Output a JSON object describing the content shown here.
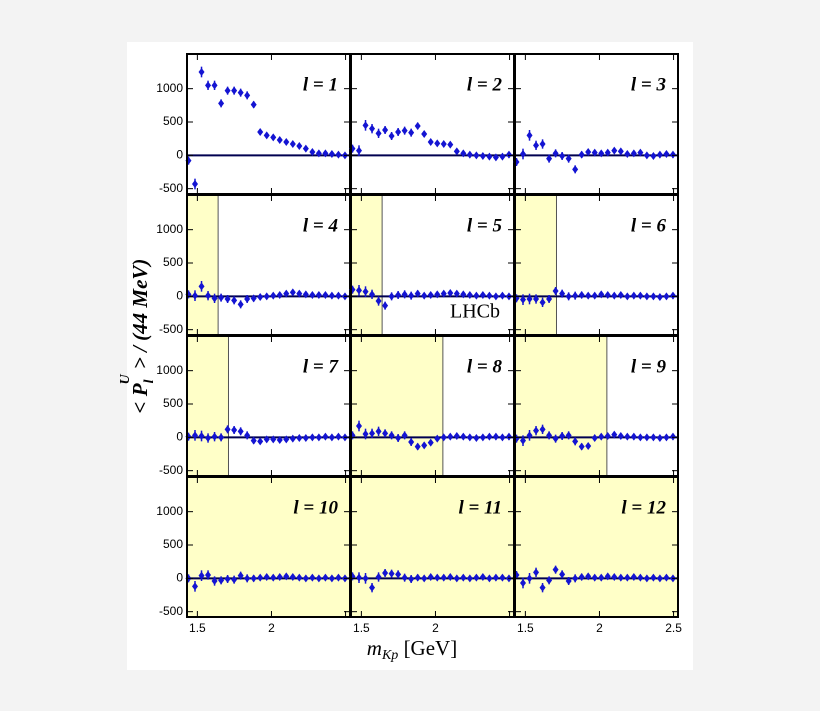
{
  "chart_data": {
    "type": "scatter",
    "x_label": {
      "main": "m",
      "sub": "Kp",
      "rest": " [GeV]"
    },
    "y_label": {
      "main": "< P",
      "sub": "l",
      "sup": "U",
      "rest": " > / (44 MeV)"
    },
    "annotation": "LHCb",
    "color": "#1414d2",
    "zero_line_color": "#000050",
    "shade_color": "#ffffc8",
    "xlim": [
      1.43,
      2.53
    ],
    "xticks": [
      1.5,
      2,
      2.5
    ],
    "ylim": [
      -580,
      1520
    ],
    "yticks": [
      -500,
      0,
      500,
      1000
    ],
    "x": [
      1.44,
      1.484,
      1.528,
      1.572,
      1.616,
      1.66,
      1.704,
      1.748,
      1.792,
      1.836,
      1.88,
      1.924,
      1.968,
      2.012,
      2.056,
      2.1,
      2.144,
      2.188,
      2.232,
      2.276,
      2.32,
      2.364,
      2.408,
      2.452,
      2.496
    ],
    "errors": [
      60,
      80,
      80,
      70,
      70,
      60,
      60,
      60,
      60,
      60,
      50,
      40,
      40,
      40,
      40,
      30,
      30,
      30,
      30,
      30,
      30,
      30,
      30,
      30,
      30
    ],
    "panels": [
      {
        "label": "l = 1",
        "shade_to": null,
        "values": [
          -80,
          -430,
          1250,
          1050,
          1050,
          780,
          970,
          970,
          940,
          900,
          760,
          350,
          300,
          270,
          230,
          200,
          170,
          140,
          100,
          50,
          30,
          30,
          20,
          10,
          0
        ]
      },
      {
        "label": "l = 2",
        "shade_to": null,
        "values": [
          100,
          70,
          450,
          400,
          330,
          380,
          290,
          350,
          370,
          340,
          440,
          320,
          200,
          180,
          170,
          160,
          60,
          30,
          10,
          0,
          -10,
          -20,
          -30,
          -20,
          10
        ]
      },
      {
        "label": "l = 3",
        "shade_to": null,
        "values": [
          -100,
          20,
          300,
          150,
          170,
          -50,
          30,
          -10,
          -50,
          -210,
          10,
          50,
          40,
          30,
          40,
          70,
          60,
          20,
          30,
          40,
          0,
          -10,
          10,
          20,
          10
        ]
      },
      {
        "label": "l = 4",
        "shade_to": 1.64,
        "values": [
          30,
          10,
          150,
          10,
          -30,
          -20,
          -40,
          -60,
          -120,
          -40,
          -30,
          -10,
          0,
          10,
          20,
          40,
          60,
          40,
          30,
          20,
          20,
          20,
          10,
          10,
          0
        ]
      },
      {
        "label": "l = 5",
        "shade_to": 1.64,
        "values": [
          100,
          90,
          70,
          30,
          -70,
          -140,
          0,
          20,
          30,
          10,
          40,
          10,
          20,
          30,
          40,
          50,
          40,
          30,
          20,
          10,
          20,
          10,
          0,
          10,
          0
        ]
      },
      {
        "label": "l = 6",
        "shade_to": 1.71,
        "values": [
          -30,
          -50,
          -40,
          -40,
          -90,
          -40,
          80,
          40,
          0,
          10,
          20,
          10,
          10,
          30,
          20,
          10,
          20,
          0,
          10,
          10,
          0,
          0,
          -10,
          0,
          10
        ]
      },
      {
        "label": "l = 7",
        "shade_to": 1.71,
        "values": [
          10,
          30,
          20,
          -10,
          10,
          0,
          120,
          110,
          90,
          30,
          -50,
          -60,
          -30,
          -30,
          -40,
          -30,
          -20,
          -10,
          -10,
          0,
          0,
          10,
          0,
          10,
          0
        ]
      },
      {
        "label": "l = 8",
        "shade_to": 2.05,
        "values": [
          30,
          170,
          50,
          60,
          90,
          60,
          30,
          -10,
          30,
          -70,
          -140,
          -120,
          -80,
          -20,
          0,
          10,
          20,
          10,
          0,
          -10,
          0,
          10,
          10,
          0,
          10
        ]
      },
      {
        "label": "l = 9",
        "shade_to": 2.05,
        "values": [
          -20,
          -50,
          30,
          100,
          120,
          30,
          -20,
          20,
          30,
          -60,
          -140,
          -130,
          -10,
          10,
          20,
          40,
          20,
          10,
          10,
          0,
          0,
          0,
          -10,
          0,
          10
        ]
      },
      {
        "label": "l = 10",
        "shade_to": 2.53,
        "values": [
          0,
          -120,
          40,
          50,
          -40,
          -30,
          -10,
          -20,
          40,
          0,
          0,
          10,
          20,
          10,
          20,
          30,
          20,
          10,
          0,
          10,
          0,
          10,
          0,
          10,
          0
        ]
      },
      {
        "label": "l = 11",
        "shade_to": 2.53,
        "values": [
          30,
          10,
          0,
          -140,
          20,
          80,
          70,
          60,
          10,
          -10,
          10,
          0,
          20,
          10,
          10,
          20,
          0,
          10,
          0,
          10,
          20,
          0,
          10,
          10,
          0
        ]
      },
      {
        "label": "l = 12",
        "shade_to": 2.53,
        "values": [
          50,
          -70,
          0,
          90,
          -140,
          -30,
          130,
          60,
          -40,
          0,
          20,
          30,
          10,
          10,
          30,
          20,
          10,
          10,
          20,
          10,
          0,
          10,
          0,
          10,
          0
        ]
      }
    ]
  }
}
